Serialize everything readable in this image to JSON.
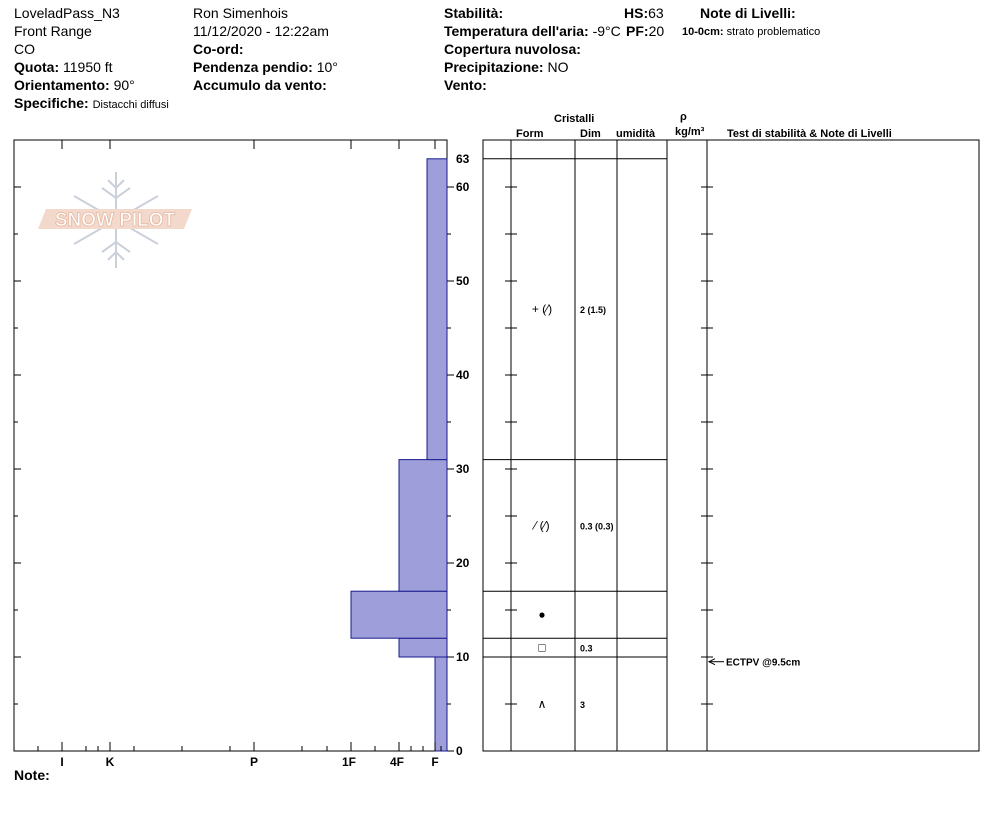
{
  "header": {
    "location": "LoveladPass_N3",
    "range": "Front Range",
    "state": "CO",
    "elevation_label": "Quota:",
    "elevation": "11950 ft",
    "aspect_label": "Orientamento:",
    "aspect": "90°",
    "specifics_label": "Specifiche:",
    "specifics": "Distacchi diffusi",
    "observer": "Ron Simenhois",
    "datetime": "11/12/2020 - 12:22am",
    "coord_label": "Co-ord:",
    "slope_label": "Pendenza pendio:",
    "slope": "10°",
    "wind_loading_label": "Accumulo da vento:",
    "stability_label": "Stabilità:",
    "air_temp_label": "Temperatura dell'aria:",
    "air_temp": "-9°C",
    "cloud_label": "Copertura nuvolosa:",
    "precip_label": "Precipitazione:",
    "precip": "NO",
    "wind_label": "Vento:",
    "hs_label": "HS:",
    "hs": "63",
    "pf_label": "PF:",
    "pf": "20",
    "layer_notes_label": "Note di Livelli:",
    "layer_note_depth": "10-0cm:",
    "layer_note_text": "strato problematico"
  },
  "logo_text": "SNOW PILOT",
  "notes_label": "Note:",
  "columns": {
    "crystals": "Cristalli",
    "form": "Form",
    "size": "Dim",
    "moisture": "umidità",
    "density_symbol": "ρ",
    "density_unit": "kg/m³",
    "stability_notes": "Test di stabilità & Note di Livelli"
  },
  "chart_data": {
    "type": "bar",
    "orientation": "horizontal",
    "y_label": "",
    "y_range": [
      0,
      63
    ],
    "y_ticks": [
      0,
      10,
      20,
      30,
      40,
      50,
      60,
      63
    ],
    "hardness_scale": [
      "I",
      "K",
      "P",
      "1F",
      "4F",
      "F"
    ],
    "layers": [
      {
        "bottom": 0,
        "top": 10,
        "hardness": "F"
      },
      {
        "bottom": 10,
        "top": 12,
        "hardness": "4F"
      },
      {
        "bottom": 12,
        "top": 17,
        "hardness": "1F"
      },
      {
        "bottom": 17,
        "top": 31,
        "hardness": "4F"
      },
      {
        "bottom": 31,
        "top": 63,
        "hardness": "F-"
      }
    ],
    "bar_color": "#9e9edb",
    "crystal_rows": [
      {
        "bottom": 31,
        "top": 63,
        "form_symbol": "+ (⁄)",
        "size": "2 (1.5)"
      },
      {
        "bottom": 17,
        "top": 31,
        "form_symbol": "⁄ (⁄)",
        "size": "0.3 (0.3)"
      },
      {
        "bottom": 12,
        "top": 17,
        "form_symbol": "●",
        "size": ""
      },
      {
        "bottom": 10,
        "top": 12,
        "form_symbol": "□",
        "size": "0.3"
      },
      {
        "bottom": 0,
        "top": 10,
        "form_symbol": "∧",
        "size": "3"
      }
    ],
    "stability_tests": [
      {
        "depth": 9.5,
        "label": "ECTPV @9.5cm"
      }
    ]
  }
}
